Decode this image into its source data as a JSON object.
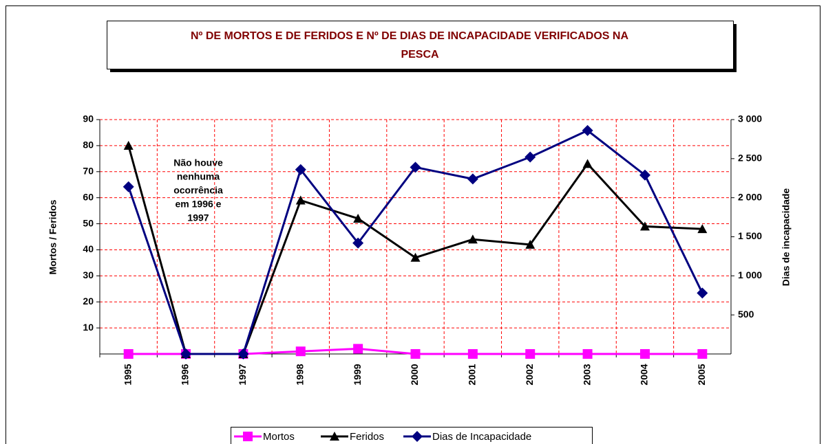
{
  "chart_data": {
    "type": "line",
    "title": [
      "Nº DE MORTOS E DE FERIDOS E Nº DE DIAS DE INCAPACIDADE VERIFICADOS NA",
      "PESCA"
    ],
    "ylabel": "Mortos / Feridos",
    "y2label": "Dias de incapacidade",
    "annotation": [
      "Não houve",
      "nenhuma",
      "ocorrência",
      "em 1996 e",
      "1997"
    ],
    "categories": [
      "1995",
      "1996",
      "1997",
      "1998",
      "1999",
      "2000",
      "2001",
      "2002",
      "2003",
      "2004",
      "2005"
    ],
    "series": [
      {
        "name": "Mortos",
        "color": "#ff00ff",
        "marker": "square",
        "values": [
          0,
          0,
          0,
          1,
          2,
          0,
          0,
          0,
          0,
          0,
          0
        ]
      },
      {
        "name": "Feridos",
        "color": "#000000",
        "marker": "triangle",
        "values": [
          80,
          0,
          0,
          59,
          52,
          37,
          44,
          42,
          73,
          49,
          48
        ]
      },
      {
        "name": "Dias de Incapacidade",
        "color": "#000080",
        "marker": "diamond",
        "axis": "y2",
        "values": [
          2140,
          0,
          0,
          2360,
          1420,
          2390,
          2240,
          2520,
          2860,
          2290,
          780
        ]
      }
    ],
    "ylim": [
      0,
      90
    ],
    "yticks": [
      10,
      20,
      30,
      40,
      50,
      60,
      70,
      80,
      90
    ],
    "y2lim": [
      0,
      3000
    ],
    "y2ticks": [
      500,
      {
        "value": 1000,
        "label": "1 000"
      },
      {
        "value": 1500,
        "label": "1 500"
      },
      {
        "value": 2000,
        "label": "2 000"
      },
      {
        "value": 2500,
        "label": "2 500"
      },
      {
        "value": 3000,
        "label": "3 000"
      }
    ],
    "grid": true,
    "grid_color": "#ff0000",
    "legend": "bottom"
  }
}
